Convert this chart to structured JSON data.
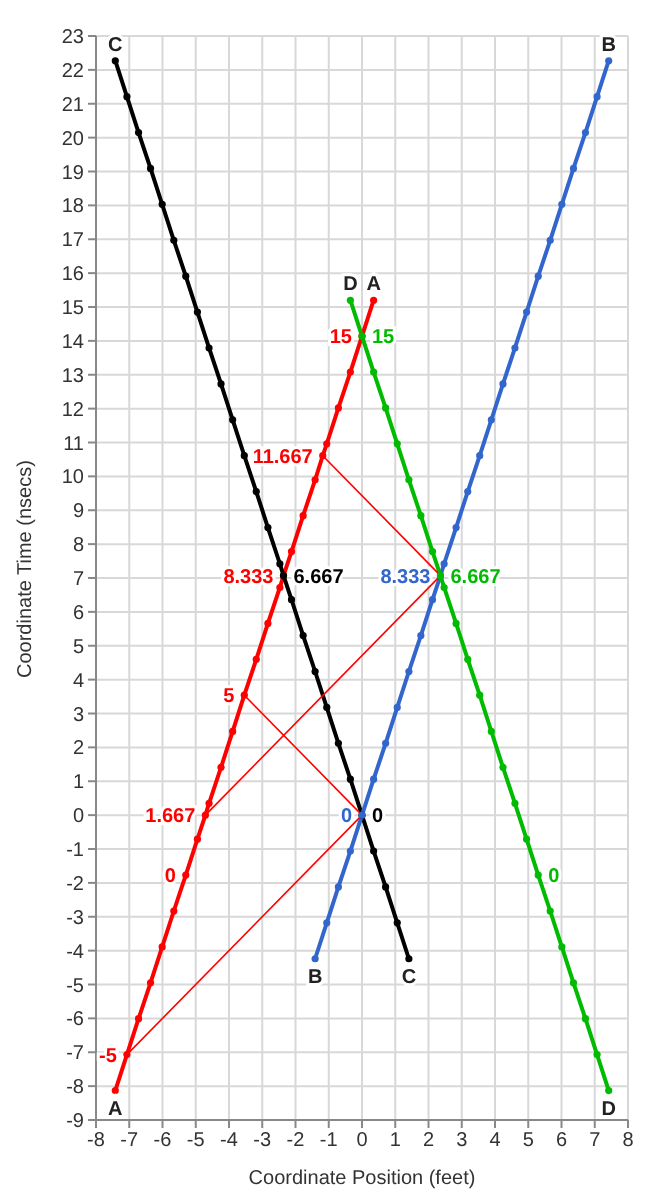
{
  "chart_data": {
    "type": "line",
    "xlabel": "Coordinate Position (feet)",
    "ylabel": "Coordinate Time (nsecs)",
    "xlim": [
      -8,
      8
    ],
    "ylim": [
      -9,
      23
    ],
    "xticks": [
      -8,
      -7,
      -6,
      -5,
      -4,
      -3,
      -2,
      -1,
      0,
      1,
      2,
      3,
      4,
      5,
      6,
      7,
      8
    ],
    "yticks": [
      -9,
      -8,
      -7,
      -6,
      -5,
      -4,
      -3,
      -2,
      -1,
      0,
      1,
      2,
      3,
      4,
      5,
      6,
      7,
      8,
      9,
      10,
      11,
      12,
      13,
      14,
      15,
      16,
      17,
      18,
      19,
      20,
      21,
      22,
      23
    ],
    "grid": true,
    "marker": "circle",
    "line_style": "solid",
    "series": [
      {
        "color": "#ff0000",
        "x": [
          -7.42,
          -7.07,
          -6.72,
          -6.36,
          -6.01,
          -5.66,
          -5.3,
          -4.95,
          -4.71,
          -4.6,
          -4.24,
          -3.89,
          -3.54,
          -3.18,
          -2.83,
          -2.47,
          -2.36,
          -2.12,
          -1.77,
          -1.41,
          -1.18,
          -1.06,
          -0.71,
          -0.35,
          0,
          0.35
        ],
        "values": [
          -8.13,
          -7.07,
          -6.01,
          -4.95,
          -3.89,
          -2.83,
          -1.77,
          -0.71,
          0,
          0.35,
          1.41,
          2.47,
          3.54,
          4.6,
          5.66,
          6.72,
          7.07,
          7.78,
          8.84,
          9.9,
          10.61,
          10.96,
          12.02,
          13.08,
          14.14,
          15.2
        ]
      },
      {
        "color": "#000000",
        "x": [
          1.41,
          1.06,
          0.71,
          0.35,
          0,
          -0.35,
          -0.71,
          -1.06,
          -1.41,
          -1.77,
          -2.12,
          -2.36,
          -2.47,
          -2.83,
          -3.18,
          -3.54,
          -3.89,
          -4.24,
          -4.6,
          -4.95,
          -5.3,
          -5.66,
          -6.01,
          -6.36,
          -6.72,
          -7.07,
          -7.42
        ],
        "values": [
          -4.24,
          -3.18,
          -2.12,
          -1.06,
          0,
          1.06,
          2.12,
          3.18,
          4.24,
          5.3,
          6.36,
          7.07,
          7.42,
          8.49,
          9.55,
          10.61,
          11.67,
          12.73,
          13.79,
          14.85,
          15.91,
          16.97,
          18.03,
          19.09,
          20.15,
          21.21,
          22.27
        ]
      },
      {
        "color": "#3366cc",
        "x": [
          -1.41,
          -1.06,
          -0.71,
          -0.35,
          0,
          0.35,
          0.71,
          1.06,
          1.41,
          1.77,
          2.12,
          2.36,
          2.47,
          2.83,
          3.18,
          3.54,
          3.89,
          4.24,
          4.6,
          4.95,
          5.3,
          5.66,
          6.01,
          6.36,
          6.72,
          7.07,
          7.42
        ],
        "values": [
          -4.24,
          -3.18,
          -2.12,
          -1.06,
          0,
          1.06,
          2.12,
          3.18,
          4.24,
          5.3,
          6.36,
          7.07,
          7.42,
          8.49,
          9.55,
          10.61,
          11.67,
          12.73,
          13.79,
          14.85,
          15.91,
          16.97,
          18.03,
          19.09,
          20.15,
          21.21,
          22.27
        ]
      },
      {
        "color": "#00bb00",
        "x": [
          7.42,
          7.07,
          6.72,
          6.36,
          6.01,
          5.66,
          5.3,
          4.95,
          4.6,
          4.24,
          3.89,
          3.54,
          3.18,
          2.83,
          2.47,
          2.36,
          2.12,
          1.77,
          1.41,
          1.06,
          0.71,
          0.35,
          0,
          -0.35
        ],
        "values": [
          -8.13,
          -7.07,
          -6.01,
          -4.95,
          -3.89,
          -2.83,
          -1.77,
          -0.71,
          0.35,
          1.41,
          2.47,
          3.54,
          4.6,
          5.66,
          6.72,
          7.07,
          7.78,
          8.84,
          9.9,
          10.96,
          12.02,
          13.08,
          14.14,
          15.2
        ]
      },
      {
        "color": "#ff0000",
        "marker": "none",
        "x": [
          -7.07,
          0
        ],
        "values": [
          -7.07,
          0
        ]
      },
      {
        "color": "#ff0000",
        "marker": "none",
        "x": [
          -3.54,
          0
        ],
        "values": [
          3.54,
          0
        ]
      },
      {
        "color": "#ff0000",
        "marker": "none",
        "x": [
          -4.71,
          2.36
        ],
        "values": [
          0,
          7.07
        ]
      },
      {
        "color": "#ff0000",
        "marker": "none",
        "x": [
          -1.18,
          2.36
        ],
        "values": [
          10.61,
          7.07
        ]
      }
    ],
    "annotations": [
      {
        "text": "-5",
        "x": -7.07,
        "y": -7.07
      },
      {
        "text": "0",
        "x": -5.3,
        "y": -1.77
      },
      {
        "text": "1.667",
        "x": -4.71,
        "y": 0
      },
      {
        "text": "5",
        "x": -3.54,
        "y": 3.54
      },
      {
        "text": "8.333",
        "x": -2.36,
        "y": 7.07
      },
      {
        "text": "11.667",
        "x": -1.18,
        "y": 10.61
      },
      {
        "text": "15",
        "x": 0,
        "y": 14.14
      },
      {
        "text": "0",
        "x": 0,
        "y": 0
      },
      {
        "text": "6.667",
        "x": -2.36,
        "y": 7.07
      },
      {
        "text": "0",
        "x": 0,
        "y": 0
      },
      {
        "text": "8.333",
        "x": 2.36,
        "y": 7.07
      },
      {
        "text": "0",
        "x": 5.3,
        "y": -1.77
      },
      {
        "text": "6.667",
        "x": 2.36,
        "y": 7.07
      },
      {
        "text": "15",
        "x": 0,
        "y": 14.14
      },
      {
        "text": "A",
        "x": -7.42,
        "y": -8.13
      },
      {
        "text": "A",
        "x": 0.35,
        "y": 15.2
      },
      {
        "text": "B",
        "x": -1.41,
        "y": -4.24
      },
      {
        "text": "B",
        "x": 7.42,
        "y": 22.27
      },
      {
        "text": "C",
        "x": -7.42,
        "y": 22.27
      },
      {
        "text": "C",
        "x": 1.41,
        "y": -4.24
      },
      {
        "text": "D",
        "x": -0.35,
        "y": 15.2
      },
      {
        "text": "D",
        "x": 7.42,
        "y": -8.13
      }
    ]
  }
}
